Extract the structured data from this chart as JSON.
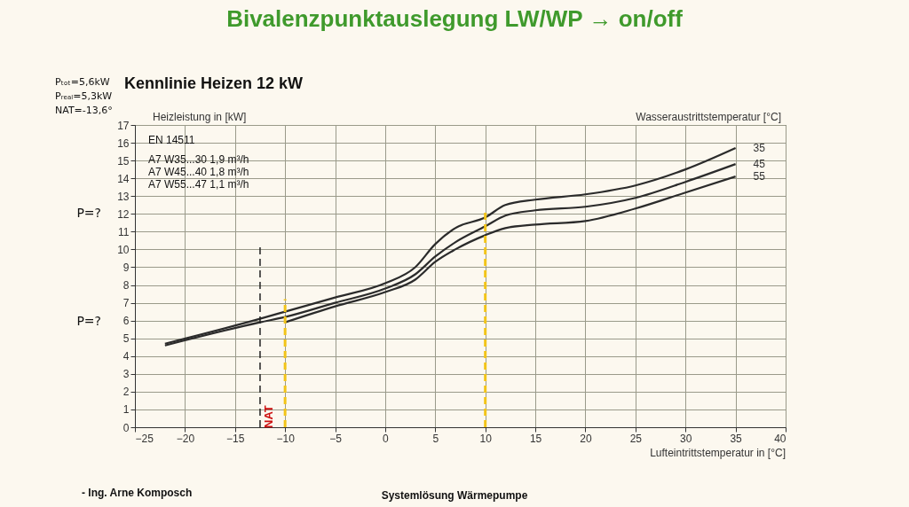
{
  "chart_data": {
    "type": "line",
    "title": "Bivalenzpunktauslegung LW/WP → on/off",
    "subtitle": "Kennlinie Heizen 12 kW",
    "xlabel": "Lufteintrittstemperatur in [°C]",
    "ylabel": "Heizleistung in [kW]",
    "legend_title": "Wasseraustrittstemperatur [°C]",
    "xlim": [
      -25,
      40
    ],
    "xticks": [
      -25,
      -20,
      -15,
      -10,
      -5,
      0,
      5,
      10,
      15,
      20,
      25,
      30,
      35,
      40
    ],
    "ylim": [
      0,
      17
    ],
    "yticks": [
      0,
      1,
      2,
      3,
      4,
      5,
      6,
      7,
      8,
      9,
      10,
      11,
      12,
      13,
      14,
      15,
      16,
      17
    ],
    "grid": true,
    "marker": "none",
    "line_style": "solid",
    "series": [
      {
        "name": "35",
        "color": "#2b2b2b",
        "x": [
          -22,
          -12.5,
          -10,
          -5,
          0,
          3,
          5,
          7,
          10,
          12,
          15,
          20,
          25,
          30,
          35
        ],
        "values": [
          4.7,
          6.1,
          6.5,
          7.3,
          8.1,
          9.0,
          10.3,
          11.2,
          11.8,
          12.5,
          12.8,
          13.1,
          13.6,
          14.5,
          15.7
        ]
      },
      {
        "name": "45",
        "color": "#2b2b2b",
        "x": [
          -22,
          -12.5,
          -10,
          -5,
          0,
          3,
          5,
          7,
          10,
          12,
          15,
          20,
          25,
          30,
          35
        ],
        "values": [
          4.6,
          5.9,
          6.2,
          7.0,
          7.8,
          8.6,
          9.6,
          10.4,
          11.3,
          11.9,
          12.2,
          12.4,
          12.9,
          13.8,
          14.8
        ]
      },
      {
        "name": "55",
        "color": "#2b2b2b",
        "x": [
          -10,
          -5,
          0,
          3,
          5,
          7,
          10,
          12,
          15,
          20,
          25,
          30,
          35
        ],
        "values": [
          5.9,
          6.8,
          7.6,
          8.3,
          9.3,
          10.0,
          10.8,
          11.2,
          11.4,
          11.6,
          12.3,
          13.2,
          14.1
        ]
      }
    ],
    "ref_lines": [
      {
        "axis": "x",
        "value": -12.5,
        "label": "NAT",
        "color": "#222222",
        "line_style": "dashed"
      },
      {
        "axis": "x",
        "value": -10,
        "label": null,
        "color": "#f2c418",
        "line_style": "dashed"
      },
      {
        "axis": "x",
        "value": 10,
        "label": null,
        "color": "#f2c418",
        "line_style": "dashed"
      }
    ],
    "annotations": [
      "P=?",
      "P=?",
      "Pₜₒₜ=5,6kW",
      "Pᵣₑₐₗ=5,3kW",
      "NAT=-13,6°",
      "EN 14511",
      "A7 W35...30   1,9 m³/h",
      "A7 W45...40   1,8 m³/h",
      "A7 W55...47   1,1 m³/h",
      "- Ing. Arne Komposch",
      "Systemlösung Wärmepumpe"
    ]
  }
}
